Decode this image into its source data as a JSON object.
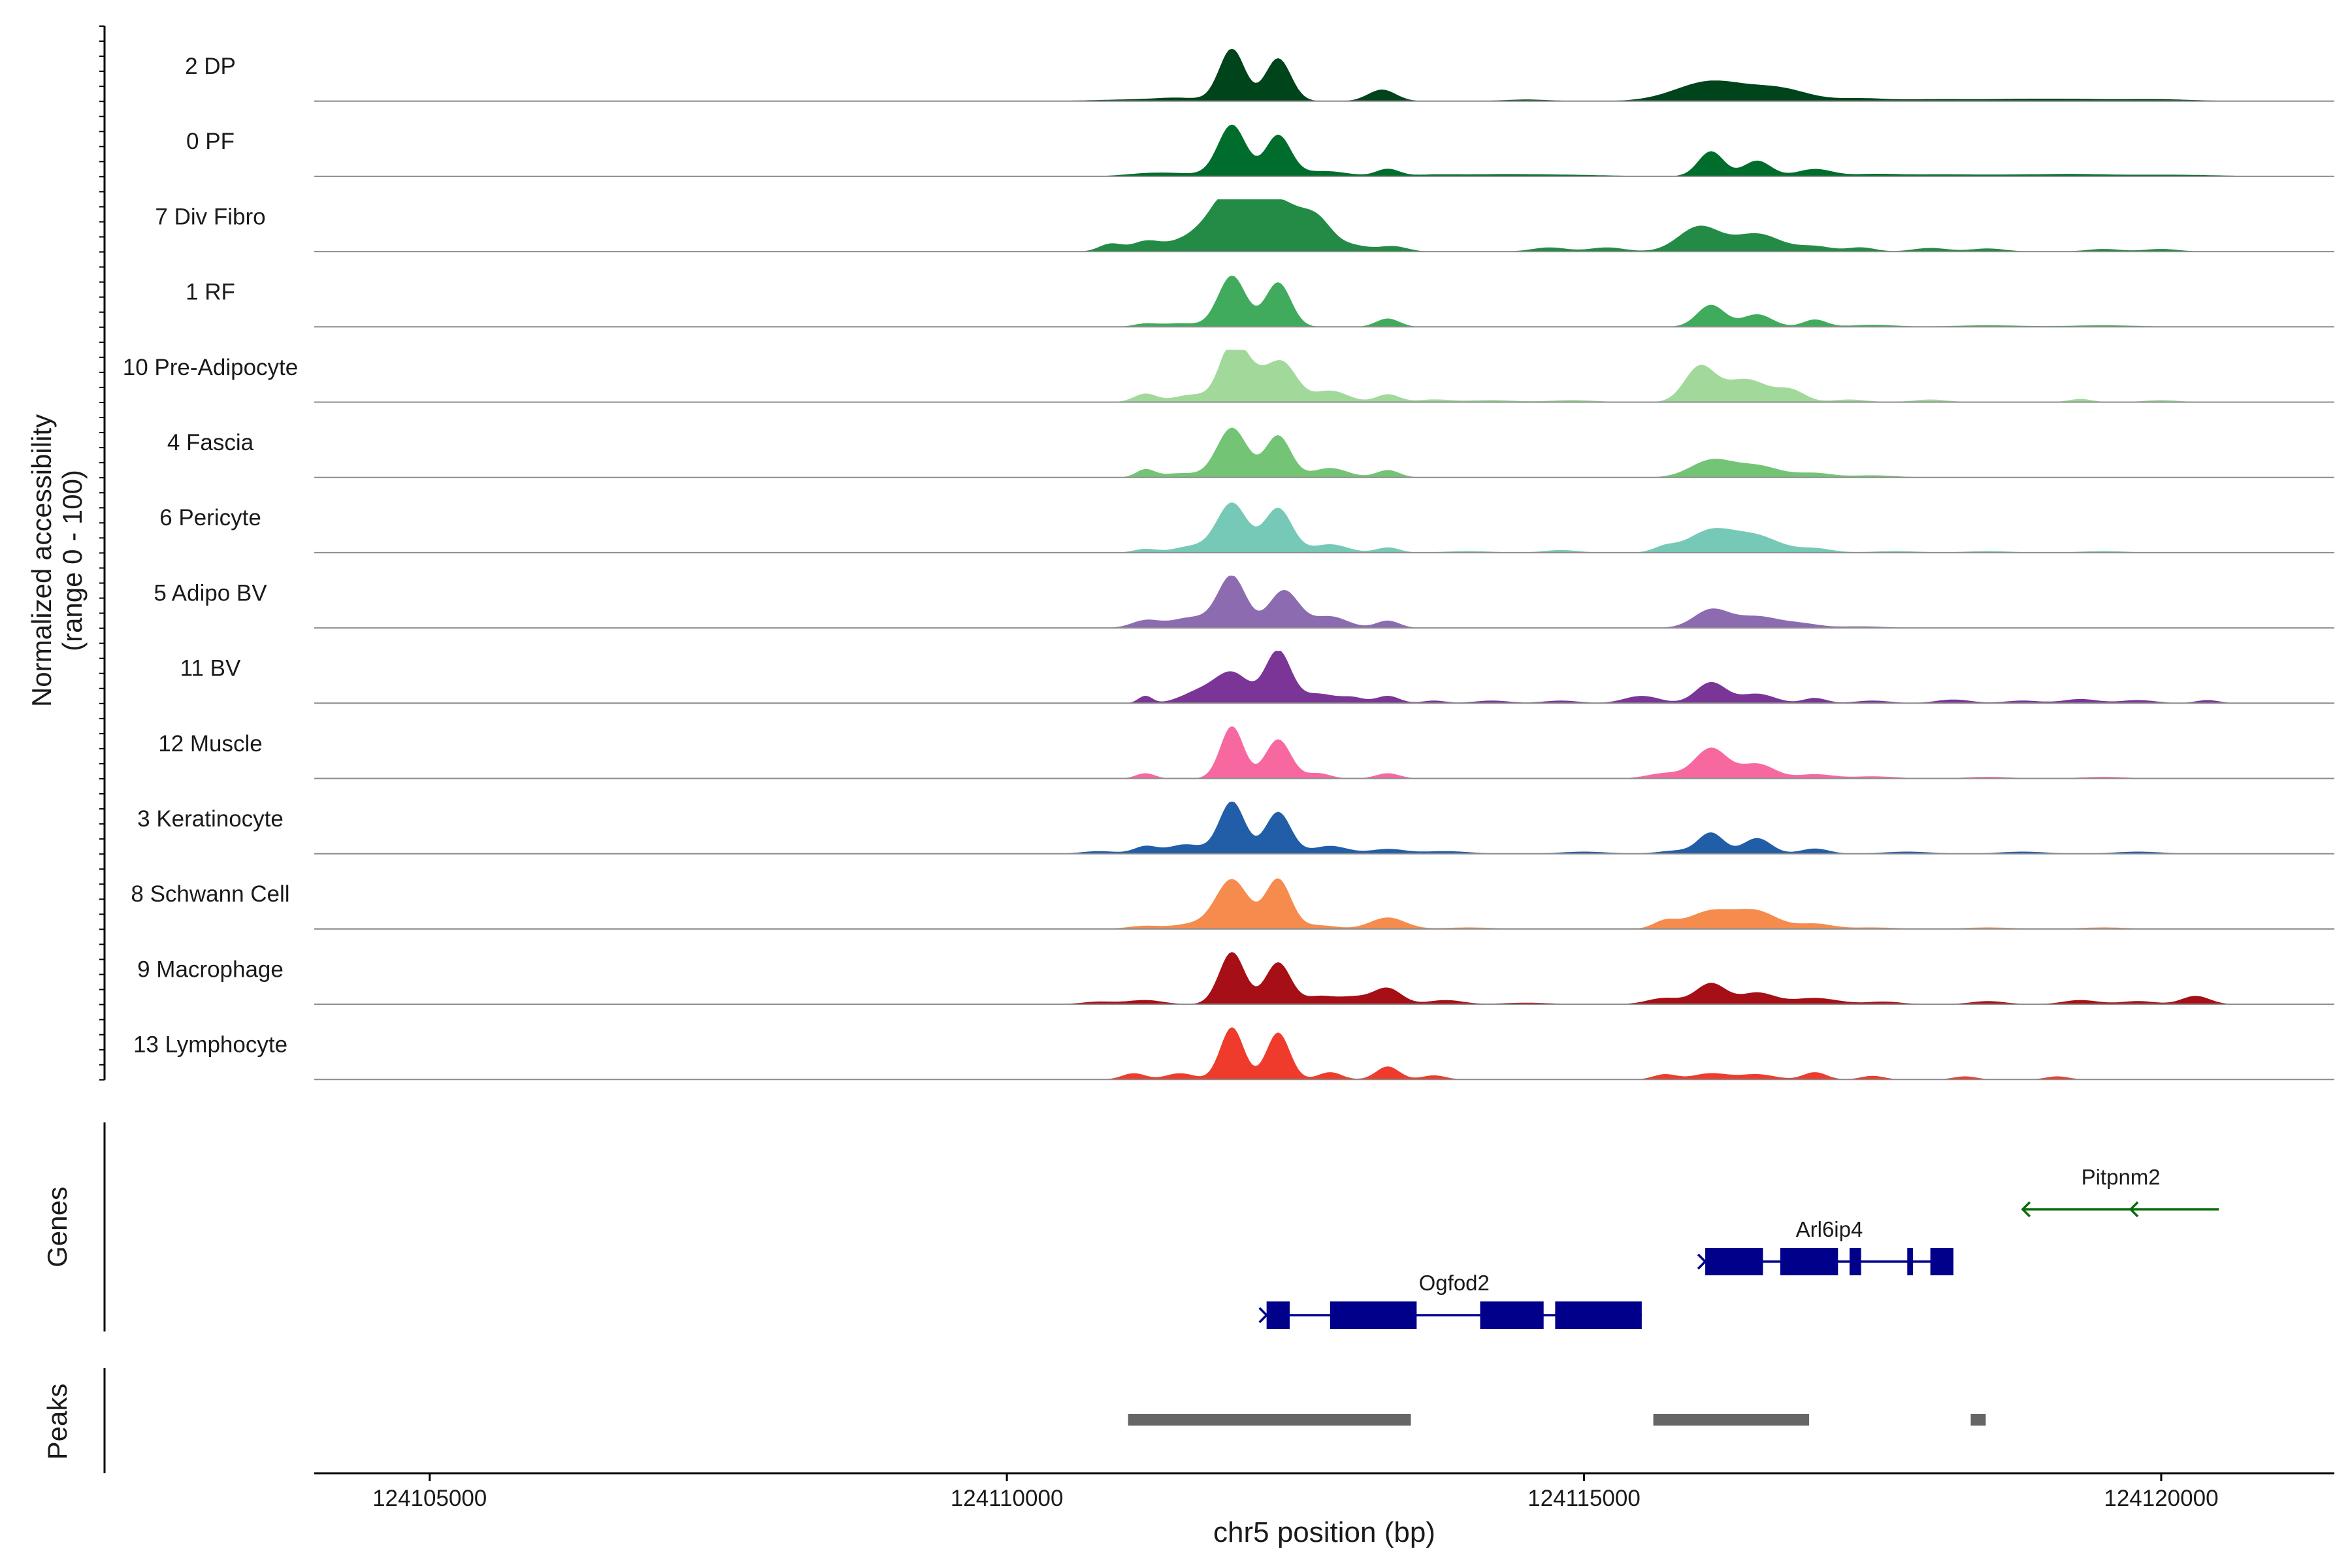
{
  "chart_data": {
    "type": "area",
    "title": "",
    "chromosome": "chr5",
    "xlabel": "chr5 position (bp)",
    "ylabel_line1": "Normalized accessibility",
    "ylabel_line2": "(range 0 - 100)",
    "xlim": [
      124104000,
      124121500
    ],
    "x_ticks": [
      124105000,
      124110000,
      124115000,
      124120000
    ],
    "x_tick_labels": [
      "124105000",
      "124110000",
      "124115000",
      "124120000"
    ],
    "panel_labels": {
      "genes": "Genes",
      "peaks": "Peaks"
    },
    "tracks": [
      {
        "name": "2 DP",
        "color": "#00441b",
        "peaks": [
          [
            124111100,
            3,
            350
          ],
          [
            124111500,
            5,
            200
          ],
          [
            124111950,
            100,
            110
          ],
          [
            124112350,
            82,
            110
          ],
          [
            124113250,
            22,
            120
          ],
          [
            124114500,
            3,
            200
          ],
          [
            124116100,
            38,
            300
          ],
          [
            124116700,
            22,
            250
          ],
          [
            124117400,
            5,
            200
          ],
          [
            124118000,
            3,
            300
          ],
          [
            124118700,
            3,
            400
          ],
          [
            124119300,
            3,
            400
          ],
          [
            124120000,
            3,
            300
          ]
        ]
      },
      {
        "name": "0 PF",
        "color": "#006d2c",
        "peaks": [
          [
            124111200,
            4,
            200
          ],
          [
            124111500,
            5,
            250
          ],
          [
            124111950,
            98,
            120
          ],
          [
            124112350,
            78,
            110
          ],
          [
            124112750,
            10,
            200
          ],
          [
            124113300,
            14,
            100
          ],
          [
            124113700,
            3,
            200
          ],
          [
            124114200,
            3,
            300
          ],
          [
            124114800,
            3,
            400
          ],
          [
            124116100,
            48,
            110
          ],
          [
            124116500,
            30,
            120
          ],
          [
            124117000,
            14,
            150
          ],
          [
            124117500,
            4,
            200
          ],
          [
            124118000,
            3,
            300
          ],
          [
            124118700,
            3,
            400
          ],
          [
            124119300,
            3,
            300
          ],
          [
            124120100,
            3,
            400
          ]
        ]
      },
      {
        "name": "7 Div Fibro",
        "color": "#238b45",
        "peaks": [
          [
            124110900,
            15,
            100
          ],
          [
            124111200,
            18,
            120
          ],
          [
            124111600,
            24,
            200
          ],
          [
            124111950,
            100,
            180
          ],
          [
            124112350,
            95,
            250
          ],
          [
            124112700,
            34,
            120
          ],
          [
            124113000,
            10,
            150
          ],
          [
            124113350,
            10,
            120
          ],
          [
            124114700,
            8,
            150
          ],
          [
            124115200,
            8,
            150
          ],
          [
            124116000,
            48,
            180
          ],
          [
            124116500,
            34,
            200
          ],
          [
            124117000,
            10,
            150
          ],
          [
            124117400,
            8,
            120
          ],
          [
            124118000,
            7,
            150
          ],
          [
            124118500,
            6,
            150
          ],
          [
            124119500,
            5,
            150
          ],
          [
            124120000,
            5,
            150
          ]
        ]
      },
      {
        "name": "1 RF",
        "color": "#41ab5d",
        "peaks": [
          [
            124111200,
            6,
            100
          ],
          [
            124111500,
            7,
            150
          ],
          [
            124111950,
            98,
            120
          ],
          [
            124112350,
            85,
            110
          ],
          [
            124113300,
            16,
            100
          ],
          [
            124116100,
            42,
            120
          ],
          [
            124116500,
            24,
            130
          ],
          [
            124117000,
            14,
            100
          ],
          [
            124117500,
            4,
            200
          ],
          [
            124118500,
            3,
            300
          ],
          [
            124119500,
            3,
            300
          ]
        ]
      },
      {
        "name": "10 Pre-Adipocyte",
        "color": "#a1d99b",
        "peaks": [
          [
            124111200,
            16,
            100
          ],
          [
            124111600,
            14,
            150
          ],
          [
            124111950,
            100,
            110
          ],
          [
            124112150,
            50,
            150
          ],
          [
            124112400,
            65,
            120
          ],
          [
            124112800,
            22,
            150
          ],
          [
            124113300,
            15,
            100
          ],
          [
            124113700,
            5,
            150
          ],
          [
            124114200,
            4,
            200
          ],
          [
            124114900,
            4,
            200
          ],
          [
            124116000,
            65,
            130
          ],
          [
            124116400,
            44,
            200
          ],
          [
            124116800,
            20,
            120
          ],
          [
            124117300,
            5,
            150
          ],
          [
            124118000,
            5,
            150
          ],
          [
            124119300,
            6,
            100
          ],
          [
            124120000,
            4,
            150
          ]
        ]
      },
      {
        "name": "4 Fascia",
        "color": "#74c476",
        "peaks": [
          [
            124111200,
            15,
            80
          ],
          [
            124111500,
            8,
            150
          ],
          [
            124111950,
            95,
            130
          ],
          [
            124112350,
            80,
            110
          ],
          [
            124112800,
            18,
            150
          ],
          [
            124113300,
            14,
            100
          ],
          [
            124116100,
            32,
            180
          ],
          [
            124116500,
            22,
            200
          ],
          [
            124117000,
            8,
            150
          ],
          [
            124117500,
            4,
            200
          ]
        ]
      },
      {
        "name": "6 Pericyte",
        "color": "#76c9b6",
        "peaks": [
          [
            124111200,
            7,
            100
          ],
          [
            124111600,
            12,
            150
          ],
          [
            124111950,
            95,
            130
          ],
          [
            124112350,
            85,
            120
          ],
          [
            124112800,
            16,
            150
          ],
          [
            124113300,
            10,
            100
          ],
          [
            124114000,
            3,
            200
          ],
          [
            124114800,
            5,
            150
          ],
          [
            124115700,
            10,
            100
          ],
          [
            124116100,
            42,
            200
          ],
          [
            124116500,
            30,
            200
          ],
          [
            124117000,
            8,
            150
          ],
          [
            124117700,
            3,
            200
          ],
          [
            124118500,
            3,
            200
          ],
          [
            124119500,
            3,
            200
          ]
        ]
      },
      {
        "name": "5 Adipo BV",
        "color": "#8c6bb1",
        "peaks": [
          [
            124111200,
            14,
            120
          ],
          [
            124111600,
            20,
            180
          ],
          [
            124111950,
            98,
            120
          ],
          [
            124112400,
            72,
            130
          ],
          [
            124112800,
            22,
            150
          ],
          [
            124113300,
            14,
            100
          ],
          [
            124116100,
            34,
            150
          ],
          [
            124116500,
            22,
            200
          ],
          [
            124116900,
            7,
            150
          ],
          [
            124117400,
            3,
            200
          ]
        ]
      },
      {
        "name": "11 BV",
        "color": "#7a3596",
        "peaks": [
          [
            124111200,
            14,
            60
          ],
          [
            124111650,
            20,
            150
          ],
          [
            124111950,
            58,
            150
          ],
          [
            124112350,
            100,
            110
          ],
          [
            124112700,
            18,
            150
          ],
          [
            124113000,
            10,
            100
          ],
          [
            124113300,
            14,
            100
          ],
          [
            124113700,
            5,
            100
          ],
          [
            124114200,
            5,
            150
          ],
          [
            124114800,
            5,
            150
          ],
          [
            124115500,
            14,
            150
          ],
          [
            124116100,
            40,
            130
          ],
          [
            124116500,
            18,
            150
          ],
          [
            124117000,
            10,
            100
          ],
          [
            124117500,
            5,
            150
          ],
          [
            124118200,
            7,
            150
          ],
          [
            124118800,
            5,
            150
          ],
          [
            124119300,
            8,
            150
          ],
          [
            124119800,
            6,
            150
          ],
          [
            124120400,
            6,
            100
          ]
        ]
      },
      {
        "name": "12 Muscle",
        "color": "#f768a1",
        "peaks": [
          [
            124111200,
            10,
            80
          ],
          [
            124111950,
            100,
            100
          ],
          [
            124112350,
            75,
            110
          ],
          [
            124112700,
            10,
            100
          ],
          [
            124113300,
            10,
            100
          ],
          [
            124115700,
            10,
            150
          ],
          [
            124116100,
            58,
            140
          ],
          [
            124116500,
            28,
            150
          ],
          [
            124117000,
            8,
            150
          ],
          [
            124117500,
            4,
            200
          ],
          [
            124118500,
            3,
            200
          ],
          [
            124119500,
            3,
            200
          ]
        ]
      },
      {
        "name": "3 Keratinocyte",
        "color": "#225ea8",
        "peaks": [
          [
            124110800,
            5,
            150
          ],
          [
            124111200,
            14,
            100
          ],
          [
            124111550,
            18,
            150
          ],
          [
            124111950,
            100,
            110
          ],
          [
            124112350,
            80,
            110
          ],
          [
            124112800,
            15,
            150
          ],
          [
            124113300,
            9,
            150
          ],
          [
            124113800,
            5,
            200
          ],
          [
            124115000,
            4,
            200
          ],
          [
            124115800,
            6,
            150
          ],
          [
            124116100,
            40,
            110
          ],
          [
            124116500,
            30,
            120
          ],
          [
            124117000,
            10,
            120
          ],
          [
            124117800,
            4,
            200
          ],
          [
            124118800,
            4,
            200
          ],
          [
            124119800,
            4,
            200
          ]
        ]
      },
      {
        "name": "8 Schwann Cell",
        "color": "#f58b4c",
        "peaks": [
          [
            124111200,
            6,
            150
          ],
          [
            124111600,
            9,
            150
          ],
          [
            124111950,
            95,
            140
          ],
          [
            124112350,
            95,
            110
          ],
          [
            124112700,
            7,
            150
          ],
          [
            124113300,
            22,
            150
          ],
          [
            124114000,
            3,
            200
          ],
          [
            124115700,
            14,
            100
          ],
          [
            124116100,
            34,
            200
          ],
          [
            124116500,
            32,
            180
          ],
          [
            124117000,
            10,
            150
          ],
          [
            124117500,
            3,
            200
          ],
          [
            124118500,
            3,
            200
          ],
          [
            124119500,
            3,
            200
          ]
        ]
      },
      {
        "name": "9 Macrophage",
        "color": "#a50f15",
        "peaks": [
          [
            124110800,
            5,
            150
          ],
          [
            124111200,
            8,
            150
          ],
          [
            124111950,
            100,
            110
          ],
          [
            124112350,
            80,
            110
          ],
          [
            124112700,
            14,
            120
          ],
          [
            124113000,
            14,
            150
          ],
          [
            124113300,
            30,
            120
          ],
          [
            124113800,
            8,
            150
          ],
          [
            124114500,
            3,
            200
          ],
          [
            124115700,
            12,
            150
          ],
          [
            124116100,
            40,
            130
          ],
          [
            124116500,
            22,
            150
          ],
          [
            124117000,
            12,
            200
          ],
          [
            124117600,
            5,
            150
          ],
          [
            124118500,
            6,
            150
          ],
          [
            124119300,
            8,
            150
          ],
          [
            124119800,
            6,
            150
          ],
          [
            124120300,
            16,
            120
          ]
        ]
      },
      {
        "name": "13 Lymphocyte",
        "color": "#ef3b2c",
        "peaks": [
          [
            124111100,
            12,
            100
          ],
          [
            124111500,
            12,
            120
          ],
          [
            124111950,
            100,
            100
          ],
          [
            124112350,
            90,
            100
          ],
          [
            124112800,
            14,
            100
          ],
          [
            124113300,
            25,
            100
          ],
          [
            124113700,
            8,
            100
          ],
          [
            124115700,
            10,
            100
          ],
          [
            124116100,
            12,
            150
          ],
          [
            124116500,
            10,
            150
          ],
          [
            124117000,
            14,
            100
          ],
          [
            124117500,
            7,
            100
          ],
          [
            124118300,
            6,
            100
          ],
          [
            124119100,
            6,
            100
          ]
        ]
      }
    ],
    "genes": [
      {
        "name": "Ogfod2",
        "color": "#00008b",
        "strand": "+",
        "start": 124112250,
        "end": 124115500,
        "exons": [
          [
            124112250,
            124112450
          ],
          [
            124112800,
            124113550
          ],
          [
            124114100,
            124114650
          ],
          [
            124114750,
            124115500
          ]
        ]
      },
      {
        "name": "Arl6ip4",
        "color": "#00008b",
        "strand": "+",
        "start": 124116050,
        "end": 124118200,
        "exons": [
          [
            124116050,
            124116550
          ],
          [
            124116700,
            124117200
          ],
          [
            124117300,
            124117400
          ],
          [
            124117800,
            124117850
          ],
          [
            124118000,
            124118200
          ]
        ]
      },
      {
        "name": "Pitpnm2",
        "color": "#0a6b0a",
        "strand": "-",
        "start": 124118800,
        "end": 124120500,
        "exons": []
      }
    ],
    "peaks_track": {
      "color": "#666666",
      "regions": [
        [
          124111050,
          124113500
        ],
        [
          124115600,
          124116950
        ],
        [
          124118350,
          124118480
        ]
      ]
    }
  }
}
